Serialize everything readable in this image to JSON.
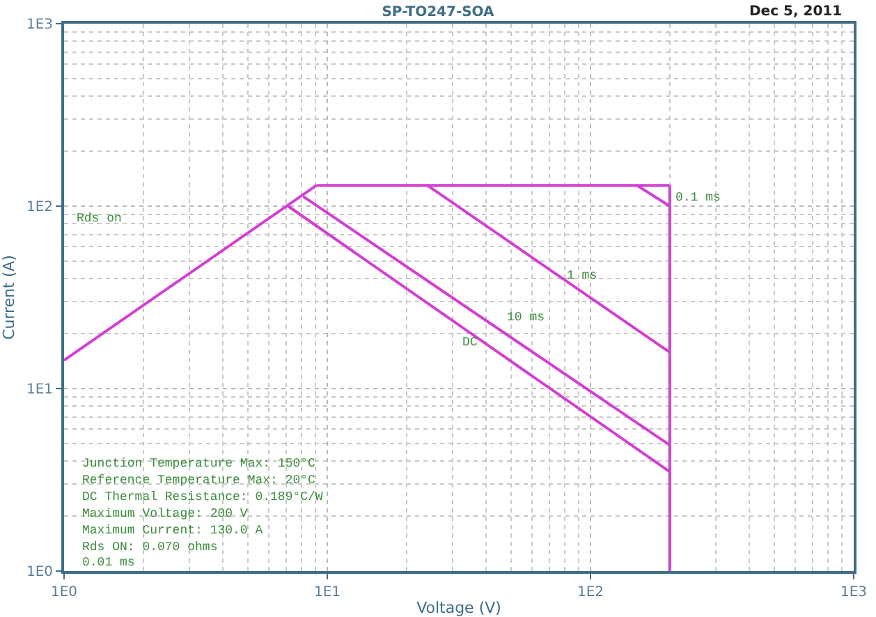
{
  "chart_data": {
    "type": "line",
    "title": "SP-TO247-SOA",
    "xlabel": "Voltage (V)",
    "ylabel": "Current (A)",
    "log": "xy",
    "grid": true,
    "line_style": "solid",
    "marker": "none",
    "xlim": [
      1,
      1000
    ],
    "ylim": [
      1,
      1000
    ],
    "xticks": [
      {
        "value": 1,
        "label": "1E0"
      },
      {
        "value": 10,
        "label": "1E1"
      },
      {
        "value": 100,
        "label": "1E2"
      },
      {
        "value": 1000,
        "label": "1E3"
      }
    ],
    "yticks": [
      {
        "value": 1,
        "label": "1E0"
      },
      {
        "value": 10,
        "label": "1E1"
      },
      {
        "value": 100,
        "label": "1E2"
      },
      {
        "value": 1000,
        "label": "1E3"
      }
    ],
    "series": [
      {
        "color": "#d23fd2",
        "x": [
          1,
          9.1
        ],
        "values": [
          14.3,
          130
        ]
      },
      {
        "color": "#d23fd2",
        "x": [
          9.1,
          200
        ],
        "values": [
          130,
          130
        ]
      },
      {
        "color": "#d23fd2",
        "x": [
          200,
          200
        ],
        "values": [
          130,
          1
        ]
      },
      {
        "color": "#d23fd2",
        "x": [
          150,
          200
        ],
        "values": [
          130,
          100
        ]
      },
      {
        "color": "#d23fd2",
        "x": [
          24,
          200
        ],
        "values": [
          130,
          15.8
        ]
      },
      {
        "color": "#d23fd2",
        "x": [
          8.1,
          200
        ],
        "values": [
          113,
          4.9
        ]
      },
      {
        "color": "#d23fd2",
        "x": [
          7.1,
          200
        ],
        "values": [
          100,
          3.5
        ]
      }
    ],
    "annotations": [
      "Dec 5, 2011",
      "Junction Temperature Max: 150°C",
      "Reference Temperature Max: 20°C",
      "DC Thermal Resistance: 0.189°C/W",
      "Maximum Voltage: 200 V",
      "Maximum Current: 130.0 A",
      "Rds ON: 0.070 ohms",
      "Rds on",
      "0.1 ms",
      "1 ms",
      "10 ms",
      "DC",
      "0.01 ms"
    ]
  }
}
